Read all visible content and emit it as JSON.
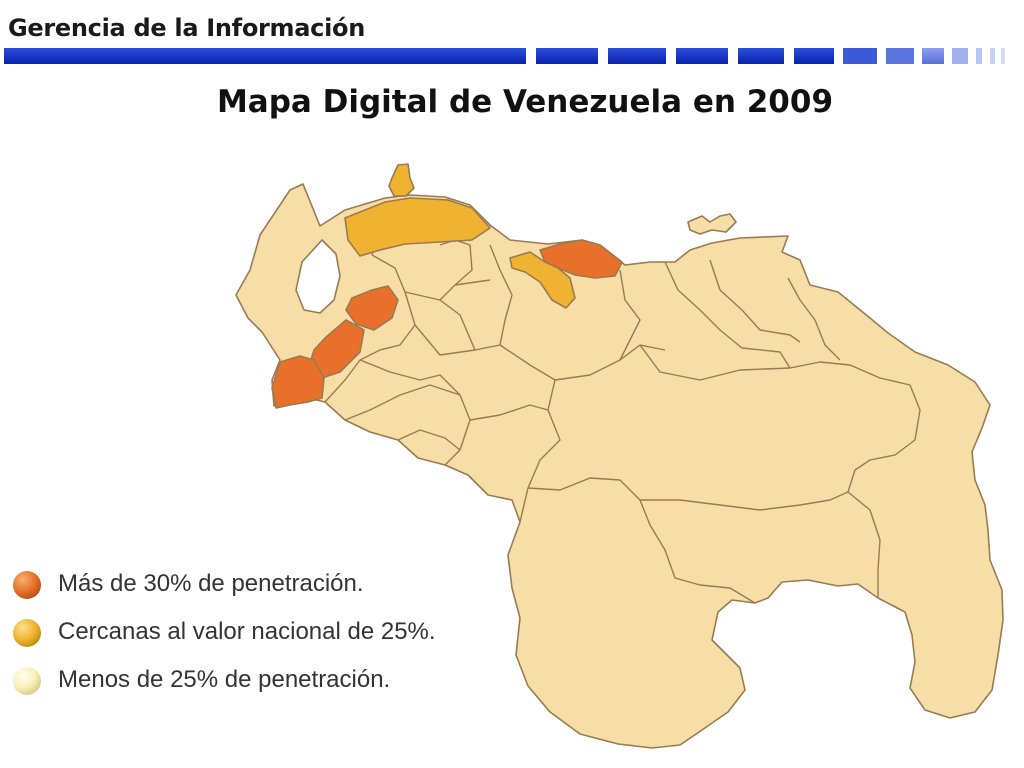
{
  "header": {
    "title": "Gerencia de la Información"
  },
  "slide": {
    "title": "Mapa Digital de Venezuela en 2009"
  },
  "colors": {
    "header_blue": "#1030c8",
    "high": "#e8702a",
    "near": "#f0b331",
    "low": "#f6dea6",
    "border": "#9a7a52"
  },
  "legend": [
    {
      "label": "Más de 30% de penetración.",
      "color": "#e8702a"
    },
    {
      "label": "Cercanas al valor nacional de 25%.",
      "color": "#f0b331"
    },
    {
      "label": "Menos de 25% de penetración.",
      "color": "#f6f0b8"
    }
  ]
}
